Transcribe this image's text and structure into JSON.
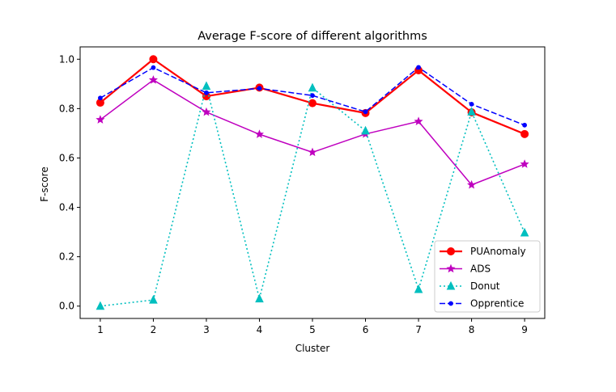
{
  "chart_data": {
    "type": "line",
    "title": "Average F-score of different algorithms",
    "xlabel": "Cluster",
    "ylabel": "F-score",
    "x": [
      1,
      2,
      3,
      4,
      5,
      6,
      7,
      8,
      9
    ],
    "xlim": [
      0.62,
      9.38
    ],
    "ylim": [
      -0.05,
      1.05
    ],
    "xticks": [
      1,
      2,
      3,
      4,
      5,
      6,
      7,
      8,
      9
    ],
    "yticks": [
      "0.0",
      "0.2",
      "0.4",
      "0.6",
      "0.8",
      "1.0"
    ],
    "grid": false,
    "legend_position": "lower-right",
    "series": [
      {
        "name": "PUAnomaly",
        "color": "#ff0000",
        "line_style": "solid",
        "marker": "circle",
        "values": [
          0.824,
          1.0,
          0.85,
          0.885,
          0.822,
          0.782,
          0.955,
          0.785,
          0.697
        ]
      },
      {
        "name": "ADS",
        "color": "#bf00bf",
        "line_style": "solid",
        "marker": "star",
        "values": [
          0.755,
          0.916,
          0.786,
          0.696,
          0.623,
          0.697,
          0.748,
          0.491,
          0.575
        ]
      },
      {
        "name": "Donut",
        "color": "#00bfbf",
        "line_style": "dotted",
        "marker": "triangle",
        "values": [
          0.0,
          0.025,
          0.891,
          0.03,
          0.884,
          0.71,
          0.068,
          0.787,
          0.297
        ]
      },
      {
        "name": "Opprentice",
        "color": "#0000ff",
        "line_style": "dashed",
        "marker": "dot",
        "values": [
          0.843,
          0.966,
          0.864,
          0.882,
          0.853,
          0.787,
          0.967,
          0.818,
          0.733
        ]
      }
    ]
  }
}
